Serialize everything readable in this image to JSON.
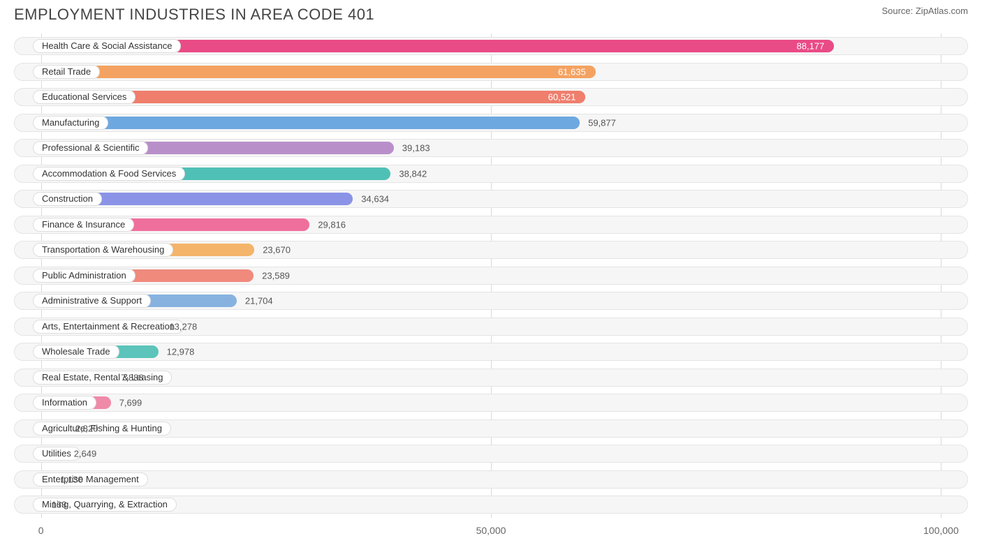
{
  "header": {
    "title": "EMPLOYMENT INDUSTRIES IN AREA CODE 401",
    "source": "Source: ZipAtlas.com"
  },
  "chart": {
    "type": "bar-horizontal",
    "background_color": "#ffffff",
    "track_bg": "#f6f6f6",
    "track_border": "#e4e4e4",
    "grid_color": "#d9d9d9",
    "text_color": "#555555",
    "title_fontsize": 22,
    "label_fontsize": 13,
    "axis_fontsize": 14,
    "xlim": [
      -3000,
      103000
    ],
    "xticks": [
      {
        "value": 0,
        "label": "0"
      },
      {
        "value": 50000,
        "label": "50,000"
      },
      {
        "value": 100000,
        "label": "100,000"
      }
    ],
    "bar_height_pct": 70,
    "items": [
      {
        "label": "Health Care & Social Assistance",
        "value": 88177,
        "display": "88,177",
        "color": "#e94b86",
        "value_inside": true
      },
      {
        "label": "Retail Trade",
        "value": 61635,
        "display": "61,635",
        "color": "#f4a261",
        "value_inside": true
      },
      {
        "label": "Educational Services",
        "value": 60521,
        "display": "60,521",
        "color": "#ef7e6d",
        "value_inside": true
      },
      {
        "label": "Manufacturing",
        "value": 59877,
        "display": "59,877",
        "color": "#6ea8e0",
        "value_inside": false
      },
      {
        "label": "Professional & Scientific",
        "value": 39183,
        "display": "39,183",
        "color": "#b98fc9",
        "value_inside": false
      },
      {
        "label": "Accommodation & Food Services",
        "value": 38842,
        "display": "38,842",
        "color": "#4fc0b6",
        "value_inside": false
      },
      {
        "label": "Construction",
        "value": 34634,
        "display": "34,634",
        "color": "#8a93e6",
        "value_inside": false
      },
      {
        "label": "Finance & Insurance",
        "value": 29816,
        "display": "29,816",
        "color": "#ef6f9c",
        "value_inside": false
      },
      {
        "label": "Transportation & Warehousing",
        "value": 23670,
        "display": "23,670",
        "color": "#f4b46a",
        "value_inside": false
      },
      {
        "label": "Public Administration",
        "value": 23589,
        "display": "23,589",
        "color": "#f08a7d",
        "value_inside": false
      },
      {
        "label": "Administrative & Support",
        "value": 21704,
        "display": "21,704",
        "color": "#87b2e0",
        "value_inside": false
      },
      {
        "label": "Arts, Entertainment & Recreation",
        "value": 13278,
        "display": "13,278",
        "color": "#b98fc9",
        "value_inside": false
      },
      {
        "label": "Wholesale Trade",
        "value": 12978,
        "display": "12,978",
        "color": "#5cc4ba",
        "value_inside": false
      },
      {
        "label": "Real Estate, Rental & Leasing",
        "value": 7888,
        "display": "7,888",
        "color": "#8a93e6",
        "value_inside": false
      },
      {
        "label": "Information",
        "value": 7699,
        "display": "7,699",
        "color": "#f08aa9",
        "value_inside": false
      },
      {
        "label": "Agriculture, Fishing & Hunting",
        "value": 2820,
        "display": "2,820",
        "color": "#f4c07a",
        "value_inside": false
      },
      {
        "label": "Utilities",
        "value": 2649,
        "display": "2,649",
        "color": "#f29886",
        "value_inside": false
      },
      {
        "label": "Enterprise Management",
        "value": 1130,
        "display": "1,130",
        "color": "#8fb8e2",
        "value_inside": false
      },
      {
        "label": "Mining, Quarrying, & Extraction",
        "value": 163,
        "display": "163",
        "color": "#c09bd1",
        "value_inside": false
      }
    ]
  }
}
